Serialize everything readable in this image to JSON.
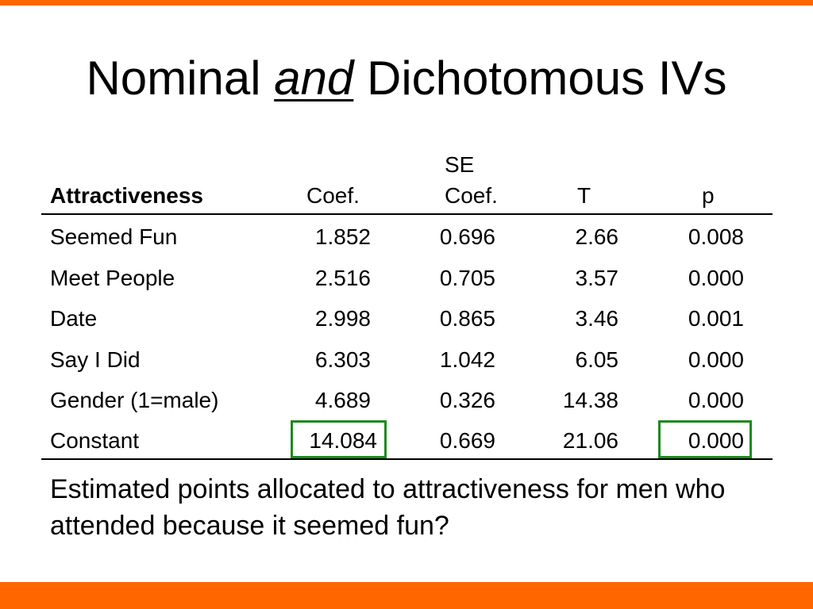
{
  "slide": {
    "title_pre": "Nominal ",
    "title_emph": "and",
    "title_post": " Dichotomous IVs",
    "question": "Estimated points allocated to attractiveness for men who attended because it seemed fun?"
  },
  "table": {
    "headers": {
      "label": "Attractiveness",
      "coef": "Coef.",
      "se_top": "SE",
      "se_bottom": "Coef.",
      "t": "T",
      "p": "p"
    },
    "rows": [
      {
        "label": "Seemed Fun",
        "coef": "1.852",
        "se": "0.696",
        "t": "2.66",
        "p": "0.008"
      },
      {
        "label": "Meet People",
        "coef": "2.516",
        "se": "0.705",
        "t": "3.57",
        "p": "0.000"
      },
      {
        "label": "Date",
        "coef": "2.998",
        "se": "0.865",
        "t": "3.46",
        "p": "0.001"
      },
      {
        "label": "Say I Did",
        "coef": "6.303",
        "se": "1.042",
        "t": "6.05",
        "p": "0.000"
      },
      {
        "label": "Gender (1=male)",
        "coef": "4.689",
        "se": "0.326",
        "t": "14.38",
        "p": "0.000"
      },
      {
        "label": "Constant",
        "coef": "14.084",
        "se": "0.669",
        "t": "21.06",
        "p": "0.000"
      }
    ]
  },
  "colors": {
    "accent_bar": "#ff6600",
    "highlight_box": "#1e8a1e"
  }
}
